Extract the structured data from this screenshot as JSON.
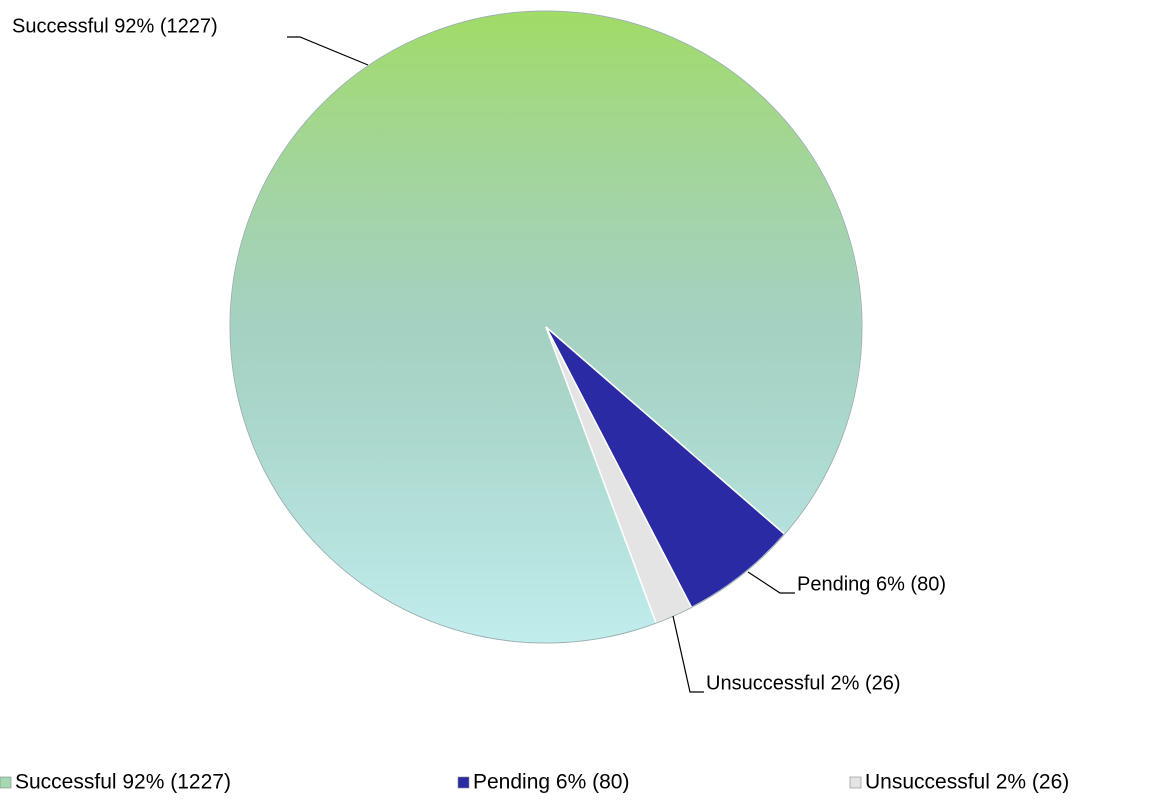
{
  "chart_data": {
    "type": "pie",
    "categories": [
      "Successful 92% (1227)",
      "Pending 6% (80)",
      "Unsuccessful 2% (26)"
    ],
    "values": [
      1227,
      80,
      26
    ],
    "colors": [
      "#a4d9b2",
      "#2a2aa4",
      "#e4e4e4"
    ],
    "legend": "bottom"
  }
}
